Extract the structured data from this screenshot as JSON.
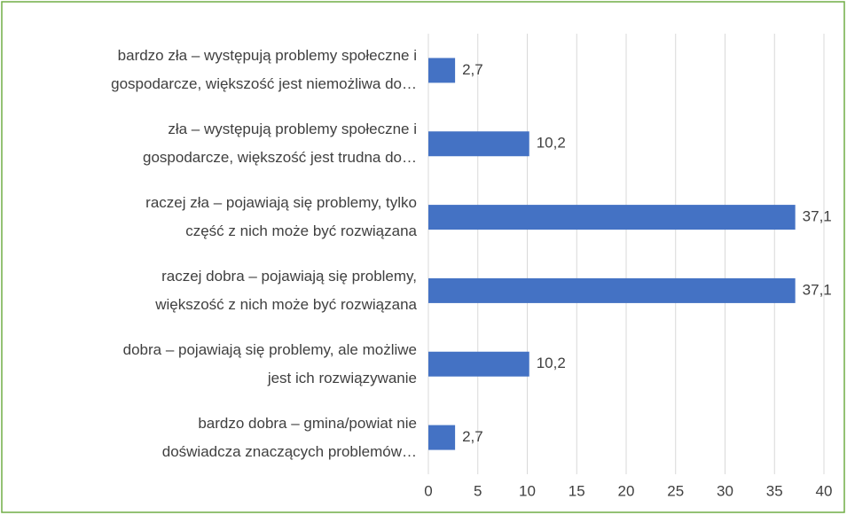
{
  "chart_data": {
    "type": "barh",
    "categories": [
      "bardzo zła – występują problemy społeczne i\ngospodarcze, większość jest niemożliwa do…",
      "zła – występują problemy społeczne i\ngospodarcze, większość jest trudna do…",
      "raczej zła – pojawiają się problemy, tylko\nczęść z nich może być rozwiązana",
      "raczej dobra – pojawiają się problemy,\nwiększość z nich może być rozwiązana",
      "dobra – pojawiają się problemy, ale możliwe\njest ich rozwiązywanie",
      "bardzo dobra – gmina/powiat nie\ndoświadcza znaczących problemów…"
    ],
    "values": [
      2.7,
      10.2,
      37.1,
      37.1,
      10.2,
      2.7
    ],
    "value_labels": [
      "2,7",
      "10,2",
      "37,1",
      "37,1",
      "10,2",
      "2,7"
    ],
    "color": "#4472c4",
    "xlim": [
      0,
      40
    ],
    "xticks": [
      0,
      5,
      10,
      15,
      20,
      25,
      30,
      35,
      40
    ],
    "grid": true
  }
}
